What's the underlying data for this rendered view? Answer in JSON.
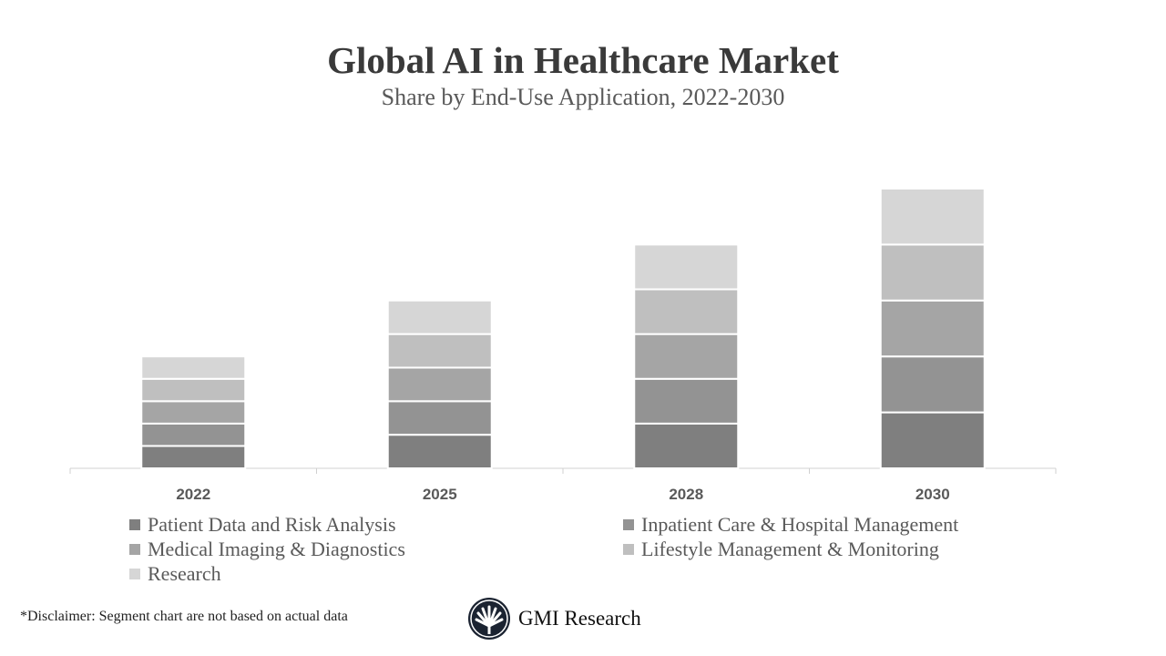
{
  "chart_data": {
    "type": "bar",
    "stacked": true,
    "title": "Global AI in Healthcare Market",
    "subtitle": "Share by End-Use Application, 2022-2030",
    "categories": [
      "2022",
      "2025",
      "2028",
      "2030"
    ],
    "series": [
      {
        "name": "Patient Data and Risk Analysis",
        "color": "#7f7f7f",
        "values": [
          2,
          3,
          4,
          5
        ]
      },
      {
        "name": "Inpatient Care & Hospital Management",
        "color": "#939393",
        "values": [
          2,
          3,
          4,
          5
        ]
      },
      {
        "name": "Medical Imaging & Diagnostics",
        "color": "#a5a5a5",
        "values": [
          2,
          3,
          4,
          5
        ]
      },
      {
        "name": "Lifestyle Management & Monitoring",
        "color": "#bfbfbf",
        "values": [
          2,
          3,
          4,
          5
        ]
      },
      {
        "name": "Research",
        "color": "#d6d6d6",
        "values": [
          2,
          3,
          4,
          5
        ]
      }
    ],
    "ylim": [
      0,
      25
    ],
    "y_axis_shown": false,
    "grid": false,
    "legend_placement": "bottom"
  },
  "footer": {
    "disclaimer": "*Disclaimer:   Segment chart are not based on actual data",
    "logo_text": "GMI Research"
  }
}
